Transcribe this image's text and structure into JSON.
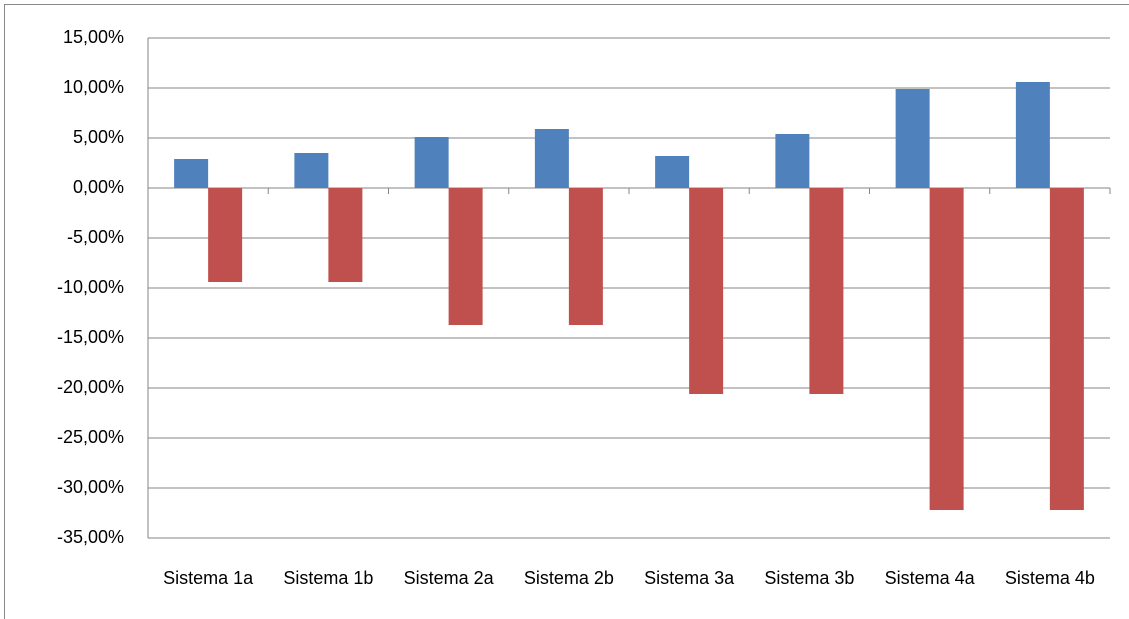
{
  "chart_data": {
    "type": "bar",
    "categories": [
      "Sistema 1a",
      "Sistema 1b",
      "Sistema 2a",
      "Sistema 2b",
      "Sistema 3a",
      "Sistema 3b",
      "Sistema 4a",
      "Sistema 4b"
    ],
    "series": [
      {
        "color": "#4f81bd",
        "values": [
          2.9,
          3.5,
          5.1,
          5.9,
          3.2,
          5.4,
          9.9,
          10.6
        ]
      },
      {
        "color": "#c0504d",
        "values": [
          -9.4,
          -9.4,
          -13.7,
          -13.7,
          -20.6,
          -20.6,
          -32.2,
          -32.2
        ]
      }
    ],
    "ylim": [
      -35,
      15
    ],
    "yticks": [
      {
        "value": 15,
        "label": "15,00%"
      },
      {
        "value": 10,
        "label": "10,00%"
      },
      {
        "value": 5,
        "label": "5,00%"
      },
      {
        "value": 0,
        "label": "0,00%"
      },
      {
        "value": -5,
        "label": "-5,00%"
      },
      {
        "value": -10,
        "label": "-10,00%"
      },
      {
        "value": -15,
        "label": "-15,00%"
      },
      {
        "value": -20,
        "label": "-20,00%"
      },
      {
        "value": -25,
        "label": "-25,00%"
      },
      {
        "value": -30,
        "label": "-30,00%"
      },
      {
        "value": -35,
        "label": "-35,00%"
      }
    ],
    "grid": true
  }
}
